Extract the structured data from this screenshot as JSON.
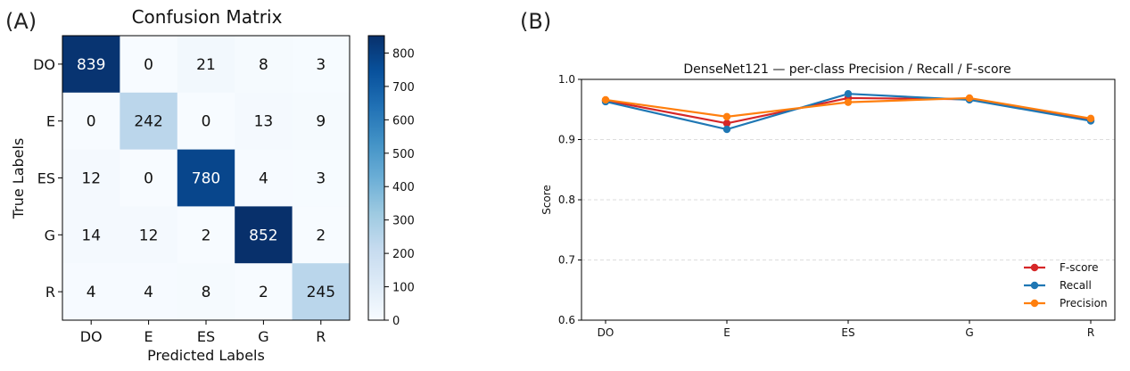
{
  "chart_data": [
    {
      "type": "heatmap",
      "panel_label": "(A)",
      "title": "Confusion Matrix",
      "xlabel": "Predicted Labels",
      "ylabel": "True Labels",
      "x_categories": [
        "DO",
        "E",
        "ES",
        "G",
        "R"
      ],
      "y_categories": [
        "DO",
        "E",
        "ES",
        "G",
        "R"
      ],
      "matrix": [
        [
          839,
          0,
          21,
          8,
          3
        ],
        [
          0,
          242,
          0,
          13,
          9
        ],
        [
          12,
          0,
          780,
          4,
          3
        ],
        [
          14,
          12,
          2,
          852,
          2
        ],
        [
          4,
          4,
          8,
          2,
          245
        ]
      ],
      "colorbar": {
        "ticks": [
          0,
          100,
          200,
          300,
          400,
          500,
          600,
          700,
          800
        ],
        "range": [
          0,
          852
        ],
        "colors": [
          "#f7fbff",
          "#deebf7",
          "#c6dbef",
          "#9ecae1",
          "#6baed6",
          "#4292c6",
          "#2171b5",
          "#08519c",
          "#08306b"
        ]
      }
    },
    {
      "type": "line",
      "panel_label": "(B)",
      "title": "DenseNet121 — per-class Precision / Recall / F-score",
      "xlabel": "",
      "ylabel": "Score",
      "categories": [
        "DO",
        "E",
        "ES",
        "G",
        "R"
      ],
      "ylim": [
        0.6,
        1.0
      ],
      "yticks": [
        "0.6",
        "0.7",
        "0.8",
        "0.9",
        "1.0"
      ],
      "grid": true,
      "legend_position": "bottom-right",
      "series": [
        {
          "name": "F-score",
          "color": "#d62728",
          "values": [
            0.965,
            0.927,
            0.969,
            0.967,
            0.933
          ]
        },
        {
          "name": "Recall",
          "color": "#1f77b4",
          "values": [
            0.963,
            0.917,
            0.976,
            0.966,
            0.931
          ]
        },
        {
          "name": "Precision",
          "color": "#ff7f0e",
          "values": [
            0.966,
            0.938,
            0.962,
            0.969,
            0.935
          ]
        }
      ]
    }
  ]
}
